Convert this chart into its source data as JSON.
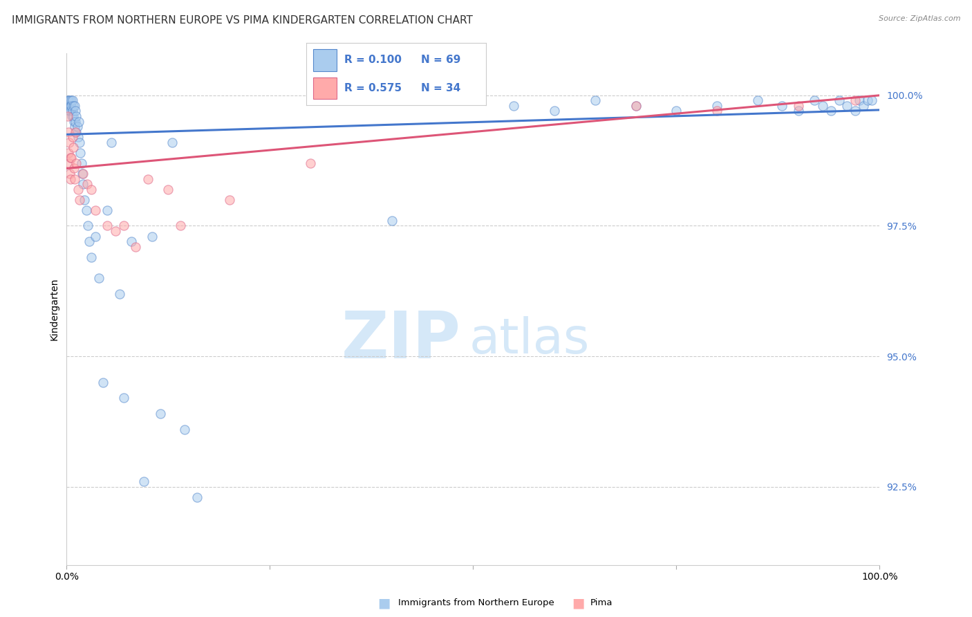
{
  "title": "IMMIGRANTS FROM NORTHERN EUROPE VS PIMA KINDERGARTEN CORRELATION CHART",
  "source": "Source: ZipAtlas.com",
  "ylabel": "Kindergarten",
  "blue_label": "Immigrants from Northern Europe",
  "pink_label": "Pima",
  "blue_R": 0.1,
  "blue_N": 69,
  "pink_R": 0.575,
  "pink_N": 34,
  "xlim": [
    0.0,
    100.0
  ],
  "ylim": [
    91.0,
    100.8
  ],
  "yticks": [
    92.5,
    95.0,
    97.5,
    100.0
  ],
  "ytick_labels": [
    "92.5%",
    "95.0%",
    "97.5%",
    "100.0%"
  ],
  "blue_scatter_x": [
    0.15,
    0.2,
    0.25,
    0.3,
    0.35,
    0.4,
    0.45,
    0.5,
    0.55,
    0.6,
    0.65,
    0.7,
    0.75,
    0.8,
    0.85,
    0.9,
    0.95,
    1.0,
    1.05,
    1.1,
    1.15,
    1.2,
    1.3,
    1.4,
    1.5,
    1.6,
    1.7,
    1.8,
    1.9,
    2.0,
    2.2,
    2.4,
    2.6,
    2.8,
    3.0,
    3.5,
    4.0,
    4.5,
    5.0,
    5.5,
    6.5,
    7.0,
    8.0,
    9.5,
    10.5,
    11.5,
    13.0,
    14.5,
    16.0,
    40.0,
    55.0,
    60.0,
    65.0,
    70.0,
    75.0,
    80.0,
    85.0,
    88.0,
    90.0,
    92.0,
    93.0,
    94.0,
    95.0,
    96.0,
    97.0,
    97.5,
    98.0,
    98.5,
    99.0
  ],
  "blue_scatter_y": [
    99.9,
    99.8,
    99.9,
    99.7,
    99.8,
    99.9,
    99.8,
    99.7,
    99.9,
    99.8,
    99.6,
    99.9,
    99.7,
    99.8,
    99.6,
    99.5,
    99.8,
    99.4,
    99.7,
    99.5,
    99.3,
    99.6,
    99.4,
    99.2,
    99.5,
    99.1,
    98.9,
    98.7,
    98.5,
    98.3,
    98.0,
    97.8,
    97.5,
    97.2,
    96.9,
    97.3,
    96.5,
    94.5,
    97.8,
    99.1,
    96.2,
    94.2,
    97.2,
    92.6,
    97.3,
    93.9,
    99.1,
    93.6,
    92.3,
    97.6,
    99.8,
    99.7,
    99.9,
    99.8,
    99.7,
    99.8,
    99.9,
    99.8,
    99.7,
    99.9,
    99.8,
    99.7,
    99.9,
    99.8,
    99.7,
    99.9,
    99.8,
    99.9,
    99.9
  ],
  "pink_scatter_x": [
    0.15,
    0.2,
    0.25,
    0.3,
    0.35,
    0.4,
    0.45,
    0.5,
    0.6,
    0.7,
    0.8,
    0.9,
    1.0,
    1.1,
    1.2,
    1.4,
    1.6,
    2.0,
    2.5,
    3.0,
    3.5,
    5.0,
    6.0,
    7.0,
    8.5,
    10.0,
    12.5,
    14.0,
    20.0,
    30.0,
    70.0,
    80.0,
    90.0,
    97.0
  ],
  "pink_scatter_y": [
    99.6,
    99.3,
    98.9,
    99.1,
    98.7,
    98.5,
    98.8,
    98.4,
    98.8,
    99.2,
    99.0,
    98.6,
    98.4,
    99.3,
    98.7,
    98.2,
    98.0,
    98.5,
    98.3,
    98.2,
    97.8,
    97.5,
    97.4,
    97.5,
    97.1,
    98.4,
    98.2,
    97.5,
    98.0,
    98.7,
    99.8,
    99.7,
    99.8,
    99.9
  ],
  "blue_color": "#aaccee",
  "pink_color": "#ffaaaa",
  "blue_edge_color": "#5588cc",
  "pink_edge_color": "#dd6688",
  "blue_line_color": "#4477cc",
  "pink_line_color": "#dd5577",
  "grid_color": "#cccccc",
  "bg_color": "#ffffff",
  "title_fontsize": 11,
  "axis_fontsize": 9,
  "legend_fontsize": 11,
  "watermark_fontsize_zip": 68,
  "watermark_fontsize_atlas": 52,
  "watermark_color": "#d5e8f8",
  "marker_size": 90,
  "marker_alpha": 0.55,
  "line_width": 2.2,
  "blue_line_start": 99.25,
  "blue_line_end": 99.72,
  "pink_line_start": 98.6,
  "pink_line_end": 100.0
}
